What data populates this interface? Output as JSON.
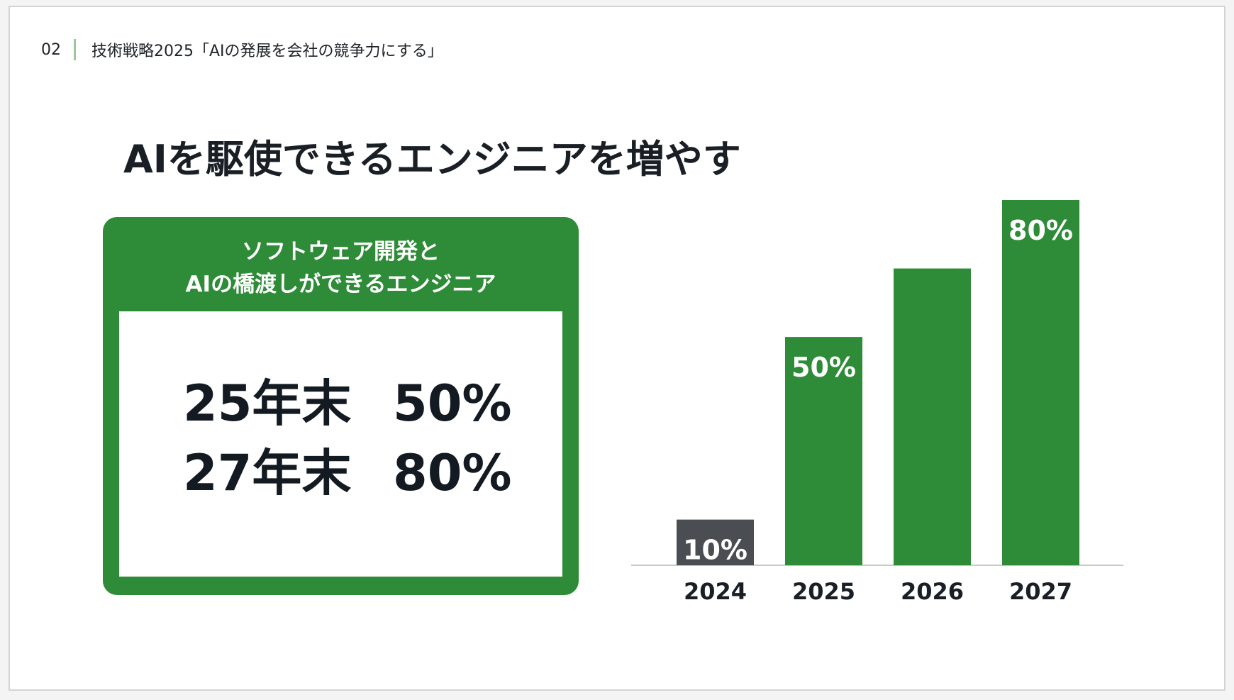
{
  "header": {
    "page_number": "02",
    "section_title": "技術戦略2025「AIの発展を会社の競争力にする」"
  },
  "title": "AIを駆使できるエンジニアを増やす",
  "card": {
    "heading_line1": "ソフトウェア開発と",
    "heading_line2": "AIの橋渡しができるエンジニア",
    "rows": [
      {
        "label": "25年末",
        "value": "50%"
      },
      {
        "label": "27年末",
        "value": "80%"
      }
    ]
  },
  "colors": {
    "accent_green": "#2e8b37",
    "bar_gray": "#4a4d52",
    "text_dark": "#1a1f26"
  },
  "chart_data": {
    "type": "bar",
    "categories": [
      "2024",
      "2025",
      "2026",
      "2027"
    ],
    "values": [
      10,
      50,
      65,
      80
    ],
    "data_labels": [
      "10%",
      "50%",
      "",
      "80%"
    ],
    "bar_colors": [
      "#4a4d52",
      "#2e8b37",
      "#2e8b37",
      "#2e8b37"
    ],
    "ylim": [
      0,
      80
    ],
    "grid": false,
    "title": "",
    "xlabel": "",
    "ylabel": ""
  }
}
